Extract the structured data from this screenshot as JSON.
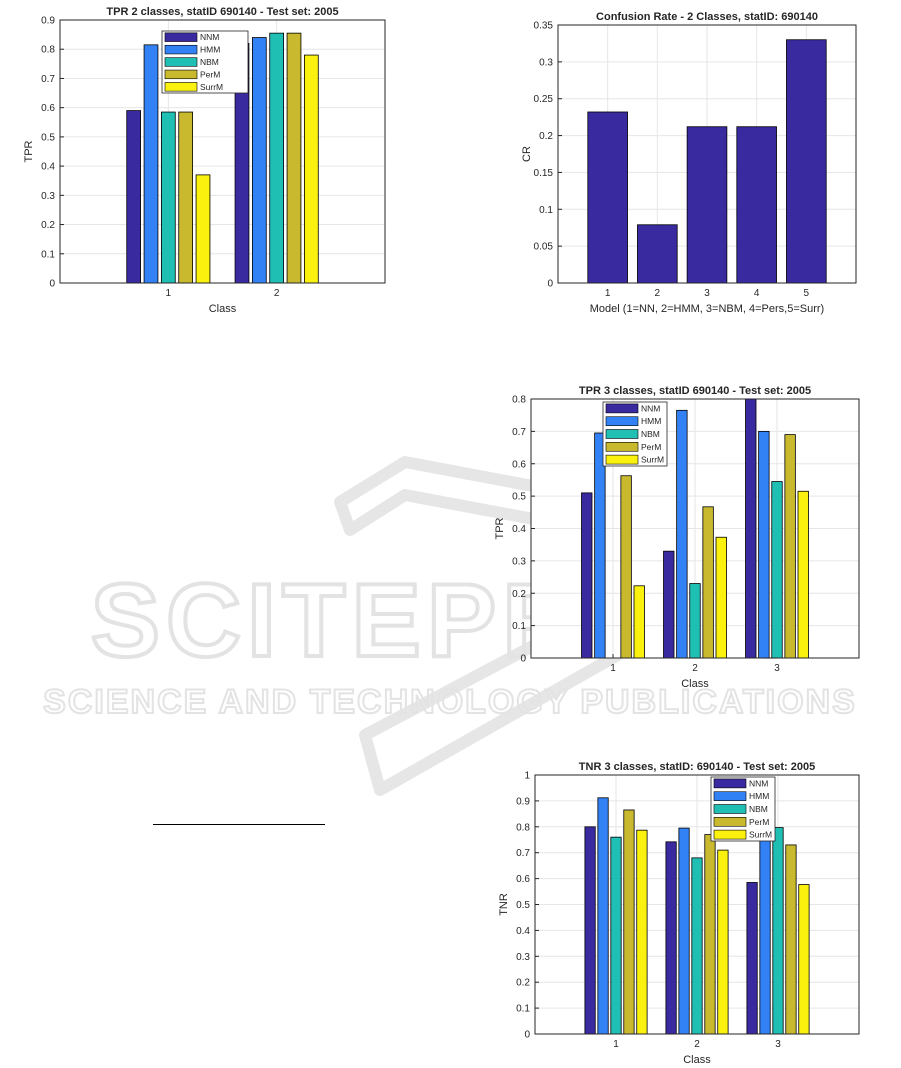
{
  "watermark": {
    "line1": "SCITEPRESS",
    "line2": "SCIENCE AND TECHNOLOGY PUBLICATIONS"
  },
  "chart_data": [
    {
      "id": "c1",
      "type": "bar",
      "title": "TPR 2 classes, statID 690140 - Test set: 2005",
      "xlabel": "Class",
      "ylabel": "TPR",
      "categories": [
        "1",
        "2"
      ],
      "ylim": [
        0,
        0.9
      ],
      "yticks": [
        "0",
        "0.1",
        "0.2",
        "0.3",
        "0.4",
        "0.5",
        "0.6",
        "0.7",
        "0.8",
        "0.9"
      ],
      "grid": true,
      "legend": "top-center",
      "series": [
        {
          "name": "NNM",
          "color": "#3a2aa0",
          "values": [
            0.59,
            0.82
          ]
        },
        {
          "name": "HMM",
          "color": "#3382f5",
          "values": [
            0.815,
            0.84
          ]
        },
        {
          "name": "NBM",
          "color": "#1fbfb4",
          "values": [
            0.585,
            0.855
          ]
        },
        {
          "name": "PerM",
          "color": "#c8b92e",
          "values": [
            0.585,
            0.855
          ]
        },
        {
          "name": "SurrM",
          "color": "#fbf10e",
          "values": [
            0.37,
            0.78
          ]
        }
      ]
    },
    {
      "id": "c2",
      "type": "bar",
      "title": "Confusion Rate - 2 Classes, statID: 690140",
      "xlabel": "Model (1=NN, 2=HMM, 3=NBM, 4=Pers,5=Surr)",
      "ylabel": "CR",
      "categories": [
        "1",
        "2",
        "3",
        "4",
        "5"
      ],
      "ylim": [
        0,
        0.35
      ],
      "yticks": [
        "0",
        "0.05",
        "0.1",
        "0.15",
        "0.2",
        "0.25",
        "0.3",
        "0.35"
      ],
      "grid": true,
      "legend": "none",
      "series": [
        {
          "color": "#3a2aa0",
          "values": [
            0.232,
            0.079,
            0.212,
            0.212,
            0.33
          ]
        }
      ]
    },
    {
      "id": "c3",
      "type": "bar",
      "title": "TPR 3 classes, statID 690140 - Test set: 2005",
      "xlabel": "Class",
      "ylabel": "TPR",
      "categories": [
        "1",
        "2",
        "3"
      ],
      "ylim": [
        0,
        0.8
      ],
      "yticks": [
        "0",
        "0.1",
        "0.2",
        "0.3",
        "0.4",
        "0.5",
        "0.6",
        "0.7",
        "0.8"
      ],
      "grid": true,
      "legend": "top-left",
      "series": [
        {
          "name": "NNM",
          "color": "#3a2aa0",
          "values": [
            0.51,
            0.33,
            0.8
          ]
        },
        {
          "name": "HMM",
          "color": "#3382f5",
          "values": [
            0.695,
            0.765,
            0.7
          ]
        },
        {
          "name": "NBM",
          "color": "#1fbfb4",
          "values": [
            0.0,
            0.23,
            0.545
          ]
        },
        {
          "name": "PerM",
          "color": "#c8b92e",
          "values": [
            0.563,
            0.467,
            0.69
          ]
        },
        {
          "name": "SurrM",
          "color": "#fbf10e",
          "values": [
            0.223,
            0.373,
            0.515
          ]
        }
      ]
    },
    {
      "id": "c4",
      "type": "bar",
      "title": "TNR 3 classes, statID: 690140 - Test set: 2005",
      "xlabel": "Class",
      "ylabel": "TNR",
      "categories": [
        "1",
        "2",
        "3"
      ],
      "ylim": [
        0,
        1
      ],
      "yticks": [
        "0",
        "0.1",
        "0.2",
        "0.3",
        "0.4",
        "0.5",
        "0.6",
        "0.7",
        "0.8",
        "0.9",
        "1"
      ],
      "grid": true,
      "legend": "top-center",
      "series": [
        {
          "name": "NNM",
          "color": "#3a2aa0",
          "values": [
            0.8,
            0.742,
            0.585
          ]
        },
        {
          "name": "HMM",
          "color": "#3382f5",
          "values": [
            0.912,
            0.795,
            0.878
          ]
        },
        {
          "name": "NBM",
          "color": "#1fbfb4",
          "values": [
            0.76,
            0.68,
            0.797
          ]
        },
        {
          "name": "PerM",
          "color": "#c8b92e",
          "values": [
            0.865,
            0.77,
            0.73
          ]
        },
        {
          "name": "SurrM",
          "color": "#fbf10e",
          "values": [
            0.787,
            0.71,
            0.577
          ]
        }
      ]
    }
  ]
}
